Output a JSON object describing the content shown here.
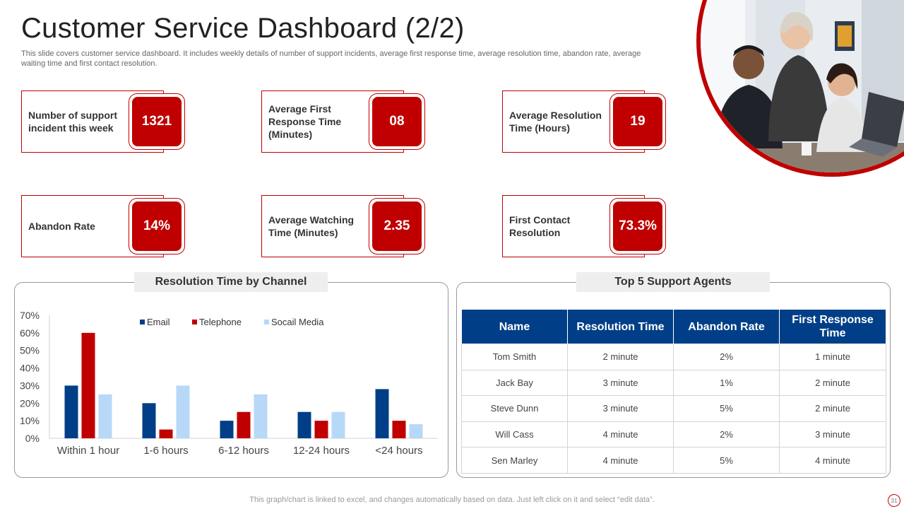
{
  "title": "Customer Service Dashboard (2/2)",
  "subtitle": "This slide covers customer service dashboard. It includes weekly details of number of support incidents, average first response time, average resolution time, abandon rate, average waiting time and first contact resolution.",
  "kpis": [
    {
      "label": "Number of support incident this week",
      "value": "1321"
    },
    {
      "label": "Average First Response Time (Minutes)",
      "value": "08"
    },
    {
      "label": "Average Resolution Time (Hours)",
      "value": "19"
    },
    {
      "label": "Abandon Rate",
      "value": "14%"
    },
    {
      "label": "Average Watching Time (Minutes)",
      "value": "2.35"
    },
    {
      "label": "First Contact Resolution",
      "value": "73.3%"
    }
  ],
  "chart_panel": {
    "title": "Resolution Time by Channel"
  },
  "chart_data": {
    "type": "bar",
    "title": "Resolution Time by Channel",
    "categories": [
      "Within 1 hour",
      "1-6 hours",
      "6-12 hours",
      "12-24 hours",
      "<24 hours"
    ],
    "series": [
      {
        "name": "Email",
        "color": "#003f87",
        "values": [
          30,
          20,
          10,
          15,
          28
        ]
      },
      {
        "name": "Telephone",
        "color": "#c00000",
        "values": [
          60,
          5,
          15,
          10,
          10
        ]
      },
      {
        "name": "Socail Media",
        "color": "#b8d8f8",
        "values": [
          25,
          30,
          25,
          15,
          8
        ]
      }
    ],
    "y_ticks": [
      "0%",
      "10%",
      "20%",
      "30%",
      "40%",
      "50%",
      "60%",
      "70%"
    ],
    "ylim": [
      0,
      70
    ],
    "legend_position": "top",
    "grid": false
  },
  "agents_panel": {
    "title": "Top 5 Support Agents",
    "headers": [
      "Name",
      "Resolution Time",
      "Abandon Rate",
      "First Response Time"
    ],
    "rows": [
      [
        "Tom Smith",
        "2 minute",
        "2%",
        "1 minute"
      ],
      [
        "Jack Bay",
        "3 minute",
        "1%",
        "2 minute"
      ],
      [
        "Steve Dunn",
        "3 minute",
        "5%",
        "2 minute"
      ],
      [
        "Will Cass",
        "4 minute",
        "2%",
        "3 minute"
      ],
      [
        "Sen Marley",
        "4 minute",
        "5%",
        "4 minute"
      ]
    ]
  },
  "photo": {
    "icon": "office-team-photo"
  },
  "footer": "This graph/chart is linked to excel,  and changes automatically based on data. Just left click on it and select “edit data”.",
  "page_number": "31",
  "colors": {
    "accent": "#c00000",
    "navy": "#003f87",
    "light_blue": "#b8d8f8"
  }
}
